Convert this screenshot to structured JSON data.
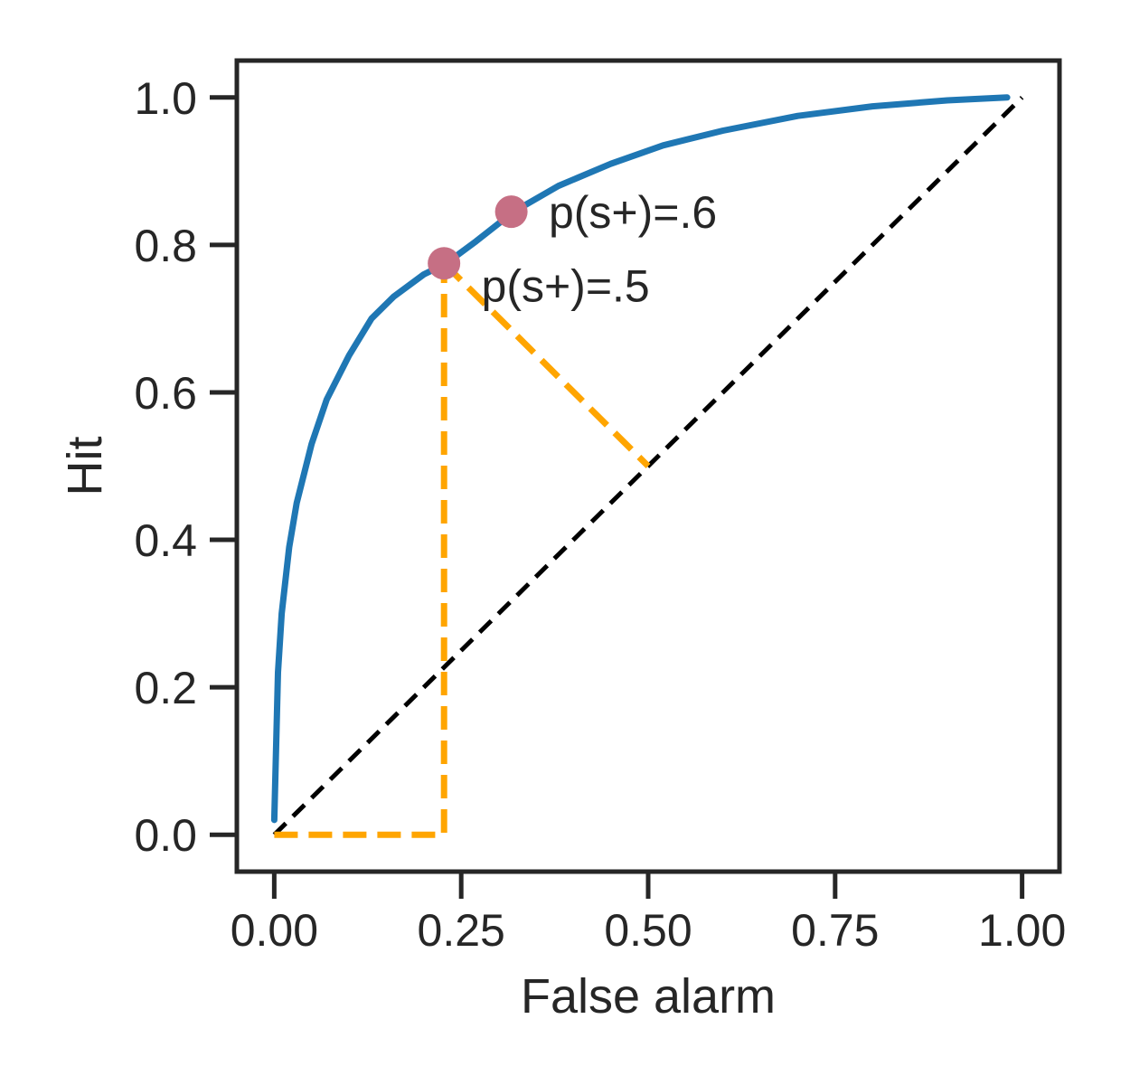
{
  "chart_data": {
    "type": "line",
    "xlabel": "False alarm",
    "ylabel": "Hit",
    "xlim": [
      -0.05,
      1.05
    ],
    "ylim": [
      -0.05,
      1.05
    ],
    "xticks": [
      0.0,
      0.25,
      0.5,
      0.75,
      1.0
    ],
    "xtick_labels": [
      "0.00",
      "0.25",
      "0.50",
      "0.75",
      "1.00"
    ],
    "yticks": [
      0.0,
      0.2,
      0.4,
      0.6,
      0.8,
      1.0
    ],
    "ytick_labels": [
      "0.0",
      "0.2",
      "0.4",
      "0.6",
      "0.8",
      "1.0"
    ],
    "grid": false,
    "series": [
      {
        "kind": "roc-curve",
        "color": "#1f77b4",
        "x": [
          0.0,
          0.005,
          0.01,
          0.02,
          0.03,
          0.05,
          0.07,
          0.1,
          0.13,
          0.16,
          0.2,
          0.23,
          0.27,
          0.32,
          0.38,
          0.45,
          0.52,
          0.6,
          0.7,
          0.8,
          0.9,
          0.98
        ],
        "y": [
          0.02,
          0.22,
          0.3,
          0.39,
          0.45,
          0.53,
          0.59,
          0.65,
          0.7,
          0.73,
          0.76,
          0.775,
          0.805,
          0.845,
          0.88,
          0.91,
          0.935,
          0.955,
          0.975,
          0.988,
          0.996,
          1.0
        ]
      },
      {
        "kind": "chance-diagonal",
        "color": "#000000",
        "style": "dashed",
        "x": [
          0.0,
          1.0
        ],
        "y": [
          0.0,
          1.0
        ]
      },
      {
        "kind": "vertical-drop",
        "color": "#ffa500",
        "style": "dashed",
        "x": [
          0.0,
          0.227,
          0.227
        ],
        "y": [
          0.0,
          0.0,
          0.775
        ]
      },
      {
        "kind": "perpendicular-to-diagonal",
        "color": "#ffa500",
        "style": "dashed",
        "x": [
          0.227,
          0.5
        ],
        "y": [
          0.775,
          0.5
        ]
      }
    ],
    "points": [
      {
        "x": 0.227,
        "y": 0.775,
        "label": "p(s+)=.5",
        "color": "#c66f84",
        "label_dx": 0.05,
        "label_dy": -0.03
      },
      {
        "x": 0.317,
        "y": 0.845,
        "label": "p(s+)=.6",
        "color": "#c66f84",
        "label_dx": 0.05,
        "label_dy": 0.0
      }
    ]
  }
}
